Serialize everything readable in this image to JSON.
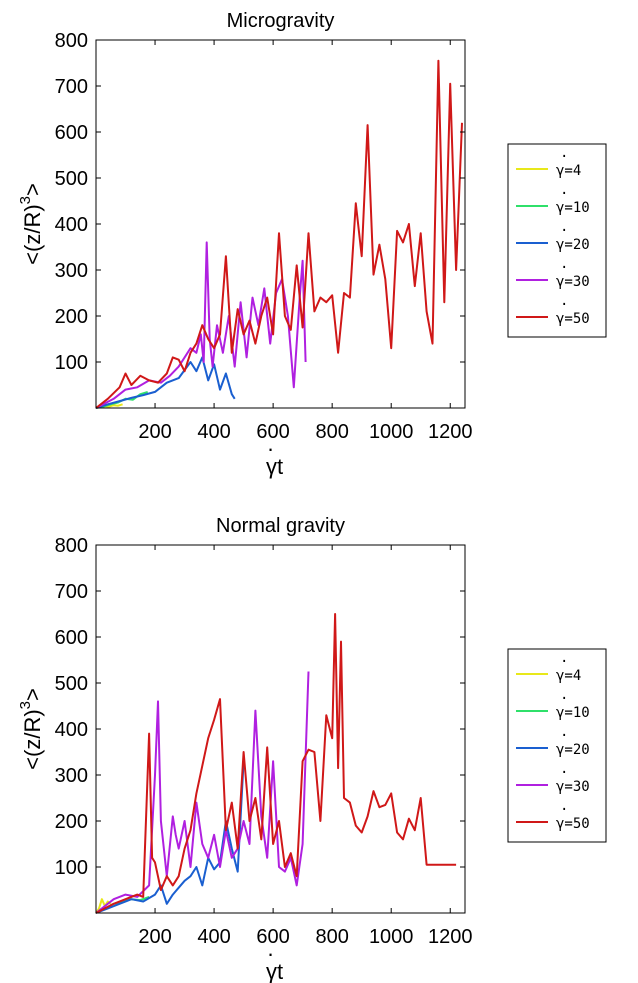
{
  "chart_data": [
    {
      "type": "line",
      "title": "Microgravity",
      "xlabel_dot": "·",
      "xlabel": "γt",
      "ylabel": "<(z/R)",
      "ylabel_sup": "3",
      "ylabel_end": ">",
      "xlim": [
        0,
        1250
      ],
      "ylim": [
        0,
        800
      ],
      "xticks": [
        200,
        400,
        600,
        800,
        1000,
        1200
      ],
      "yticks": [
        100,
        200,
        300,
        400,
        500,
        600,
        700,
        800
      ],
      "grid": false,
      "legend_position": "right",
      "series": [
        {
          "name": "γ=4",
          "dot": "·",
          "color": "#e8e81a",
          "x": [
            0,
            15,
            30,
            45,
            60,
            75,
            90
          ],
          "y": [
            0,
            2,
            4,
            3,
            6,
            5,
            8
          ]
        },
        {
          "name": "γ=10",
          "dot": "·",
          "color": "#2fe06a",
          "x": [
            0,
            25,
            50,
            75,
            100,
            125,
            150,
            175
          ],
          "y": [
            0,
            3,
            8,
            12,
            20,
            18,
            30,
            35
          ]
        },
        {
          "name": "γ=20",
          "dot": "·",
          "color": "#1a5fd0",
          "x": [
            0,
            40,
            80,
            120,
            160,
            200,
            240,
            280,
            320,
            340,
            360,
            380,
            400,
            420,
            440,
            460,
            470
          ],
          "y": [
            0,
            8,
            15,
            22,
            28,
            35,
            55,
            65,
            100,
            80,
            110,
            60,
            95,
            40,
            75,
            30,
            20
          ]
        },
        {
          "name": "γ=30",
          "dot": "·",
          "color": "#b020e0",
          "x": [
            0,
            60,
            100,
            140,
            180,
            220,
            250,
            280,
            300,
            320,
            340,
            355,
            365,
            375,
            385,
            395,
            410,
            430,
            450,
            470,
            490,
            510,
            530,
            550,
            570,
            590,
            610,
            630,
            650,
            670,
            690,
            700,
            710
          ],
          "y": [
            0,
            20,
            40,
            45,
            60,
            55,
            70,
            90,
            110,
            130,
            120,
            160,
            100,
            360,
            150,
            90,
            180,
            120,
            200,
            90,
            230,
            110,
            240,
            180,
            260,
            140,
            250,
            280,
            200,
            45,
            240,
            320,
            100
          ]
        },
        {
          "name": "γ=50",
          "dot": "·",
          "color": "#d01818",
          "x": [
            0,
            40,
            80,
            100,
            120,
            150,
            180,
            210,
            240,
            260,
            280,
            300,
            320,
            340,
            360,
            380,
            400,
            420,
            440,
            460,
            480,
            500,
            520,
            540,
            560,
            580,
            600,
            620,
            640,
            660,
            680,
            700,
            720,
            740,
            760,
            780,
            800,
            820,
            840,
            860,
            880,
            900,
            920,
            940,
            960,
            980,
            1000,
            1020,
            1040,
            1060,
            1080,
            1100,
            1120,
            1140,
            1160,
            1180,
            1200,
            1220,
            1240
          ],
          "y": [
            0,
            20,
            45,
            75,
            50,
            70,
            60,
            55,
            75,
            110,
            105,
            80,
            120,
            140,
            180,
            150,
            130,
            160,
            330,
            120,
            215,
            160,
            190,
            140,
            200,
            240,
            160,
            380,
            200,
            170,
            310,
            175,
            380,
            210,
            240,
            230,
            245,
            120,
            250,
            240,
            445,
            330,
            615,
            290,
            355,
            280,
            130,
            385,
            360,
            400,
            265,
            380,
            210,
            140,
            755,
            230,
            705,
            300,
            620
          ]
        }
      ]
    },
    {
      "type": "line",
      "title": "Normal gravity",
      "xlabel_dot": "·",
      "xlabel": "γt",
      "ylabel": "<(z/R)",
      "ylabel_sup": "3",
      "ylabel_end": ">",
      "xlim": [
        0,
        1250
      ],
      "ylim": [
        0,
        800
      ],
      "xticks": [
        200,
        400,
        600,
        800,
        1000,
        1200
      ],
      "yticks": [
        100,
        200,
        300,
        400,
        500,
        600,
        700,
        800
      ],
      "grid": false,
      "legend_position": "right",
      "series": [
        {
          "name": "γ=4",
          "dot": "·",
          "color": "#e8e81a",
          "x": [
            0,
            10,
            20,
            30,
            40,
            50
          ],
          "y": [
            0,
            10,
            30,
            15,
            25,
            20
          ]
        },
        {
          "name": "γ=10",
          "dot": "·",
          "color": "#2fe06a",
          "x": [
            0,
            30,
            60,
            90,
            120,
            150,
            180
          ],
          "y": [
            0,
            10,
            20,
            25,
            30,
            28,
            35
          ]
        },
        {
          "name": "γ=20",
          "dot": "·",
          "color": "#1a5fd0",
          "x": [
            0,
            40,
            80,
            120,
            160,
            200,
            220,
            240,
            260,
            280,
            300,
            320,
            340,
            360,
            380,
            400,
            420,
            440,
            460,
            480,
            500
          ],
          "y": [
            0,
            10,
            20,
            30,
            25,
            40,
            60,
            20,
            40,
            55,
            70,
            80,
            100,
            60,
            120,
            95,
            110,
            200,
            140,
            90,
            330
          ]
        },
        {
          "name": "γ=30",
          "dot": "·",
          "color": "#b020e0",
          "x": [
            0,
            60,
            100,
            140,
            180,
            200,
            210,
            220,
            240,
            260,
            270,
            280,
            300,
            320,
            340,
            360,
            380,
            400,
            420,
            440,
            460,
            480,
            500,
            520,
            540,
            560,
            580,
            600,
            620,
            640,
            660,
            680,
            700,
            720
          ],
          "y": [
            0,
            30,
            40,
            35,
            60,
            300,
            460,
            200,
            80,
            210,
            170,
            140,
            200,
            100,
            240,
            150,
            120,
            170,
            100,
            180,
            120,
            140,
            200,
            150,
            440,
            210,
            120,
            330,
            100,
            90,
            120,
            60,
            150,
            525
          ]
        },
        {
          "name": "γ=50",
          "dot": "·",
          "color": "#d01818",
          "x": [
            0,
            60,
            100,
            140,
            160,
            180,
            190,
            200,
            220,
            240,
            260,
            280,
            300,
            320,
            340,
            360,
            380,
            400,
            420,
            440,
            460,
            480,
            500,
            520,
            540,
            560,
            580,
            600,
            620,
            640,
            660,
            680,
            700,
            720,
            740,
            760,
            780,
            800,
            810,
            820,
            830,
            840,
            860,
            880,
            900,
            920,
            940,
            960,
            980,
            1000,
            1020,
            1040,
            1060,
            1080,
            1100,
            1120,
            1140,
            1160,
            1180,
            1200,
            1220
          ],
          "y": [
            0,
            20,
            30,
            40,
            35,
            390,
            120,
            110,
            50,
            80,
            60,
            80,
            140,
            180,
            260,
            320,
            380,
            420,
            465,
            180,
            240,
            140,
            350,
            200,
            250,
            160,
            360,
            150,
            200,
            100,
            130,
            80,
            330,
            355,
            350,
            200,
            430,
            380,
            650,
            315,
            590,
            250,
            240,
            190,
            175,
            210,
            265,
            230,
            235,
            260,
            175,
            160,
            205,
            180,
            250,
            105,
            105,
            105,
            105,
            105,
            105
          ]
        }
      ]
    }
  ]
}
